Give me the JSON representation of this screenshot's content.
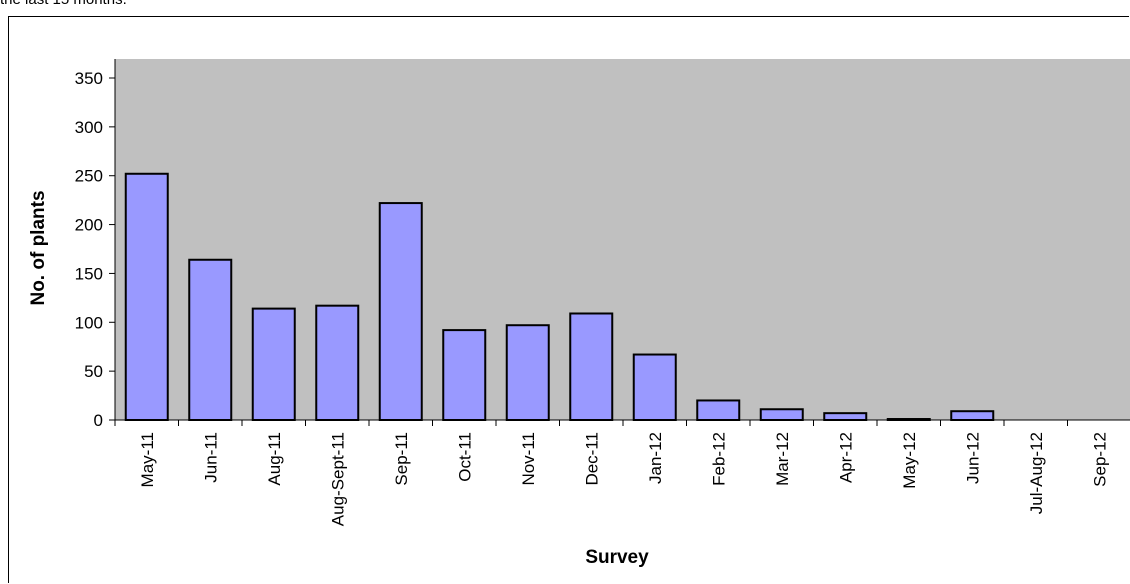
{
  "caption": "the last 15 months.",
  "chart_data": {
    "type": "bar",
    "title": "",
    "xlabel": "Survey",
    "ylabel": "No. of plants",
    "ylim": [
      0,
      350
    ],
    "yticks": [
      0,
      50,
      100,
      150,
      200,
      250,
      300,
      350
    ],
    "categories": [
      "May-11",
      "Jun-11",
      "Aug-11",
      "Aug-Sept-11",
      "Sep-11",
      "Oct-11",
      "Nov-11",
      "Dec-11",
      "Jan-12",
      "Feb-12",
      "Mar-12",
      "Apr-12",
      "May-12",
      "Jun-12",
      "Jul-Aug-12",
      "Sep-12"
    ],
    "values": [
      252,
      164,
      114,
      117,
      222,
      92,
      97,
      109,
      67,
      20,
      11,
      7,
      1,
      9,
      0,
      0
    ],
    "grid": false,
    "legend": "none",
    "colors": {
      "plot_background": "#c0c0c0",
      "bar_fill": "#9999ff",
      "bar_stroke": "#000000"
    }
  }
}
